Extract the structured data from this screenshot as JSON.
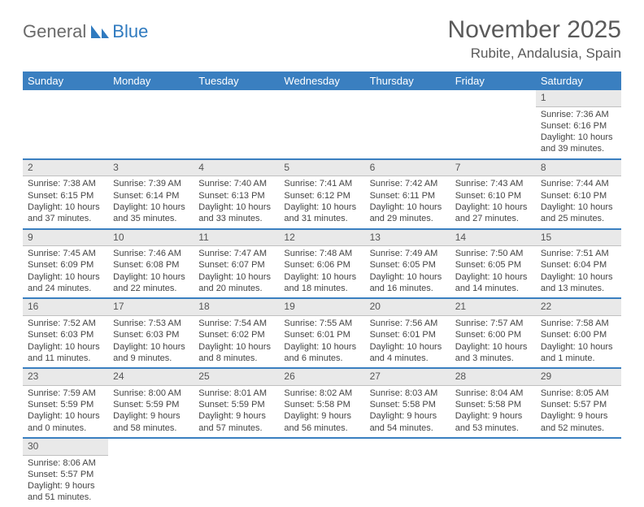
{
  "brand": {
    "part1": "General",
    "part2": "Blue"
  },
  "title": "November 2025",
  "location": "Rubite, Andalusia, Spain",
  "colors": {
    "header_bg": "#3a7fc0",
    "header_text": "#ffffff",
    "daynum_bg": "#e9e9e9",
    "row_divider": "#3a7fc0",
    "text": "#444444"
  },
  "typography": {
    "title_fontsize": 30,
    "location_fontsize": 17,
    "weekday_fontsize": 13,
    "cell_fontsize": 11
  },
  "weekdays": [
    "Sunday",
    "Monday",
    "Tuesday",
    "Wednesday",
    "Thursday",
    "Friday",
    "Saturday"
  ],
  "weeks": [
    [
      null,
      null,
      null,
      null,
      null,
      null,
      {
        "n": "1",
        "sr": "Sunrise: 7:36 AM",
        "ss": "Sunset: 6:16 PM",
        "d1": "Daylight: 10 hours",
        "d2": "and 39 minutes."
      }
    ],
    [
      {
        "n": "2",
        "sr": "Sunrise: 7:38 AM",
        "ss": "Sunset: 6:15 PM",
        "d1": "Daylight: 10 hours",
        "d2": "and 37 minutes."
      },
      {
        "n": "3",
        "sr": "Sunrise: 7:39 AM",
        "ss": "Sunset: 6:14 PM",
        "d1": "Daylight: 10 hours",
        "d2": "and 35 minutes."
      },
      {
        "n": "4",
        "sr": "Sunrise: 7:40 AM",
        "ss": "Sunset: 6:13 PM",
        "d1": "Daylight: 10 hours",
        "d2": "and 33 minutes."
      },
      {
        "n": "5",
        "sr": "Sunrise: 7:41 AM",
        "ss": "Sunset: 6:12 PM",
        "d1": "Daylight: 10 hours",
        "d2": "and 31 minutes."
      },
      {
        "n": "6",
        "sr": "Sunrise: 7:42 AM",
        "ss": "Sunset: 6:11 PM",
        "d1": "Daylight: 10 hours",
        "d2": "and 29 minutes."
      },
      {
        "n": "7",
        "sr": "Sunrise: 7:43 AM",
        "ss": "Sunset: 6:10 PM",
        "d1": "Daylight: 10 hours",
        "d2": "and 27 minutes."
      },
      {
        "n": "8",
        "sr": "Sunrise: 7:44 AM",
        "ss": "Sunset: 6:10 PM",
        "d1": "Daylight: 10 hours",
        "d2": "and 25 minutes."
      }
    ],
    [
      {
        "n": "9",
        "sr": "Sunrise: 7:45 AM",
        "ss": "Sunset: 6:09 PM",
        "d1": "Daylight: 10 hours",
        "d2": "and 24 minutes."
      },
      {
        "n": "10",
        "sr": "Sunrise: 7:46 AM",
        "ss": "Sunset: 6:08 PM",
        "d1": "Daylight: 10 hours",
        "d2": "and 22 minutes."
      },
      {
        "n": "11",
        "sr": "Sunrise: 7:47 AM",
        "ss": "Sunset: 6:07 PM",
        "d1": "Daylight: 10 hours",
        "d2": "and 20 minutes."
      },
      {
        "n": "12",
        "sr": "Sunrise: 7:48 AM",
        "ss": "Sunset: 6:06 PM",
        "d1": "Daylight: 10 hours",
        "d2": "and 18 minutes."
      },
      {
        "n": "13",
        "sr": "Sunrise: 7:49 AM",
        "ss": "Sunset: 6:05 PM",
        "d1": "Daylight: 10 hours",
        "d2": "and 16 minutes."
      },
      {
        "n": "14",
        "sr": "Sunrise: 7:50 AM",
        "ss": "Sunset: 6:05 PM",
        "d1": "Daylight: 10 hours",
        "d2": "and 14 minutes."
      },
      {
        "n": "15",
        "sr": "Sunrise: 7:51 AM",
        "ss": "Sunset: 6:04 PM",
        "d1": "Daylight: 10 hours",
        "d2": "and 13 minutes."
      }
    ],
    [
      {
        "n": "16",
        "sr": "Sunrise: 7:52 AM",
        "ss": "Sunset: 6:03 PM",
        "d1": "Daylight: 10 hours",
        "d2": "and 11 minutes."
      },
      {
        "n": "17",
        "sr": "Sunrise: 7:53 AM",
        "ss": "Sunset: 6:03 PM",
        "d1": "Daylight: 10 hours",
        "d2": "and 9 minutes."
      },
      {
        "n": "18",
        "sr": "Sunrise: 7:54 AM",
        "ss": "Sunset: 6:02 PM",
        "d1": "Daylight: 10 hours",
        "d2": "and 8 minutes."
      },
      {
        "n": "19",
        "sr": "Sunrise: 7:55 AM",
        "ss": "Sunset: 6:01 PM",
        "d1": "Daylight: 10 hours",
        "d2": "and 6 minutes."
      },
      {
        "n": "20",
        "sr": "Sunrise: 7:56 AM",
        "ss": "Sunset: 6:01 PM",
        "d1": "Daylight: 10 hours",
        "d2": "and 4 minutes."
      },
      {
        "n": "21",
        "sr": "Sunrise: 7:57 AM",
        "ss": "Sunset: 6:00 PM",
        "d1": "Daylight: 10 hours",
        "d2": "and 3 minutes."
      },
      {
        "n": "22",
        "sr": "Sunrise: 7:58 AM",
        "ss": "Sunset: 6:00 PM",
        "d1": "Daylight: 10 hours",
        "d2": "and 1 minute."
      }
    ],
    [
      {
        "n": "23",
        "sr": "Sunrise: 7:59 AM",
        "ss": "Sunset: 5:59 PM",
        "d1": "Daylight: 10 hours",
        "d2": "and 0 minutes."
      },
      {
        "n": "24",
        "sr": "Sunrise: 8:00 AM",
        "ss": "Sunset: 5:59 PM",
        "d1": "Daylight: 9 hours",
        "d2": "and 58 minutes."
      },
      {
        "n": "25",
        "sr": "Sunrise: 8:01 AM",
        "ss": "Sunset: 5:59 PM",
        "d1": "Daylight: 9 hours",
        "d2": "and 57 minutes."
      },
      {
        "n": "26",
        "sr": "Sunrise: 8:02 AM",
        "ss": "Sunset: 5:58 PM",
        "d1": "Daylight: 9 hours",
        "d2": "and 56 minutes."
      },
      {
        "n": "27",
        "sr": "Sunrise: 8:03 AM",
        "ss": "Sunset: 5:58 PM",
        "d1": "Daylight: 9 hours",
        "d2": "and 54 minutes."
      },
      {
        "n": "28",
        "sr": "Sunrise: 8:04 AM",
        "ss": "Sunset: 5:58 PM",
        "d1": "Daylight: 9 hours",
        "d2": "and 53 minutes."
      },
      {
        "n": "29",
        "sr": "Sunrise: 8:05 AM",
        "ss": "Sunset: 5:57 PM",
        "d1": "Daylight: 9 hours",
        "d2": "and 52 minutes."
      }
    ],
    [
      {
        "n": "30",
        "sr": "Sunrise: 8:06 AM",
        "ss": "Sunset: 5:57 PM",
        "d1": "Daylight: 9 hours",
        "d2": "and 51 minutes."
      },
      null,
      null,
      null,
      null,
      null,
      null
    ]
  ]
}
